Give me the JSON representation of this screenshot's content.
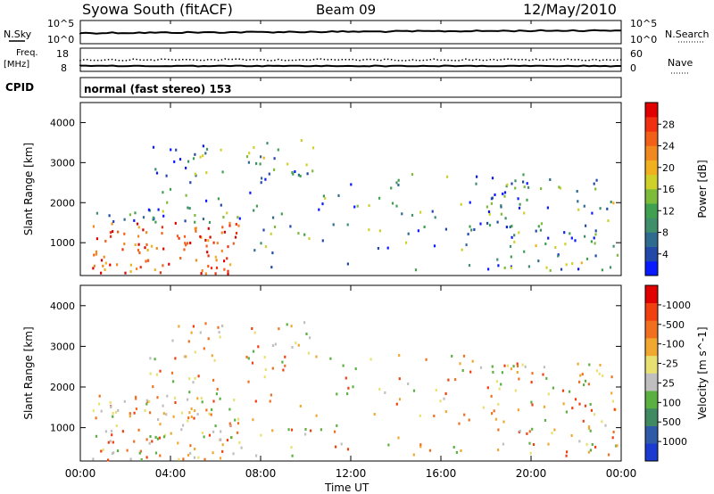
{
  "header": {
    "station": "Syowa South (fitACF)",
    "beam": "Beam 09",
    "date": "12/May/2010"
  },
  "panels": {
    "nsky": {
      "label": "N.Sky",
      "tick_top": "10^5",
      "tick_bottom": "10^0",
      "right_label": "N.Search",
      "right_tick_top": "10^5",
      "right_tick_bottom": "10^0"
    },
    "freq": {
      "label_line1": "Freq.",
      "label_line2": "[MHz]",
      "tick_top": "18",
      "tick_bottom": "8",
      "right_label": "Nave",
      "right_tick_top": "60",
      "right_tick_bottom": "0"
    },
    "cpid": {
      "label": "CPID",
      "value": "normal (fast stereo) 153"
    }
  },
  "chart_data": [
    {
      "type": "heatmap",
      "title": "",
      "ylabel": "Slant Range [km]",
      "xlabel": "",
      "ylim": [
        180,
        4500
      ],
      "yticks": [
        "1000",
        "2000",
        "3000",
        "4000"
      ],
      "colorbar": {
        "label": "Power [dB]",
        "ticks": [
          "4",
          "8",
          "12",
          "16",
          "20",
          "24",
          "28"
        ],
        "colors": [
          "#0a1aff",
          "#2248a8",
          "#2f6b8f",
          "#3f8f6b",
          "#3fa050",
          "#7dbb3a",
          "#cfd02a",
          "#f0b020",
          "#f08a20",
          "#f06018",
          "#f03010",
          "#e00000"
        ]
      }
    },
    {
      "type": "heatmap",
      "title": "",
      "ylabel": "Slant Range [km]",
      "xlabel": "Time UT",
      "ylim": [
        180,
        4500
      ],
      "yticks": [
        "1000",
        "2000",
        "3000",
        "4000"
      ],
      "colorbar": {
        "label": "Velocity [m s^-1]",
        "ticks": [
          "1000",
          "500",
          "100",
          "25",
          "-25",
          "-100",
          "-500",
          "-1000"
        ],
        "colors": [
          "#1a3ad0",
          "#2f5aa8",
          "#3f8a60",
          "#5ab040",
          "#bfbfbf",
          "#e8e070",
          "#f0a830",
          "#f07020",
          "#f04010",
          "#e00000"
        ]
      }
    }
  ],
  "xaxis": {
    "ticks": [
      "00:00",
      "04:00",
      "08:00",
      "12:00",
      "16:00",
      "20:00",
      "00:00"
    ],
    "label": "Time UT"
  }
}
